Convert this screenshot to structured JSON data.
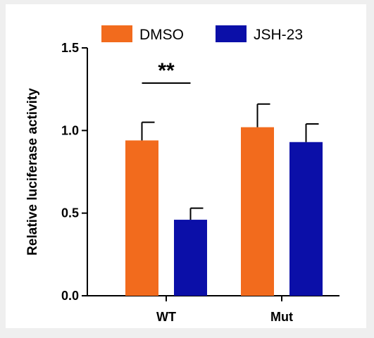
{
  "chart_data": {
    "type": "bar",
    "title": "",
    "xlabel": "",
    "ylabel": "Relative luciferase activity",
    "ylim": [
      0,
      1.5
    ],
    "yticks": [
      "0.0",
      "0.5",
      "1.0",
      "1.5"
    ],
    "categories": [
      "WT",
      "Mut"
    ],
    "series": [
      {
        "name": "DMSO",
        "color": "#f26b1d",
        "values": [
          0.94,
          1.02
        ],
        "errors": [
          0.11,
          0.14
        ]
      },
      {
        "name": "JSH-23",
        "color": "#0b0fa8",
        "values": [
          0.46,
          0.93
        ],
        "errors": [
          0.07,
          0.11
        ]
      }
    ],
    "annotations": [
      {
        "text": "**",
        "category": "WT"
      }
    ],
    "legend_position": "top",
    "grid": false
  }
}
